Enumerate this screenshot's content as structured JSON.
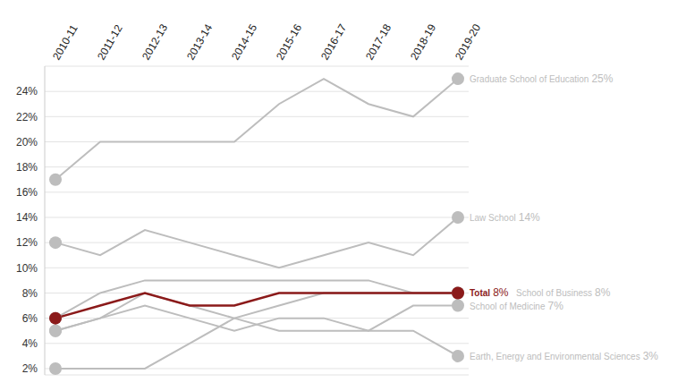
{
  "chart_data": {
    "type": "line",
    "categories": [
      "2010-11",
      "2011-12",
      "2012-13",
      "2013-14",
      "2014-15",
      "2015-16",
      "2016-17",
      "2017-18",
      "2018-19",
      "2019-20"
    ],
    "ylim": [
      1.5,
      26
    ],
    "yticks": [
      {
        "value": 2,
        "label": "2%"
      },
      {
        "value": 4,
        "label": "4%"
      },
      {
        "value": 6,
        "label": "6%"
      },
      {
        "value": 8,
        "label": "8%"
      },
      {
        "value": 10,
        "label": "10%"
      },
      {
        "value": 12,
        "label": "12%"
      },
      {
        "value": 14,
        "label": "14%"
      },
      {
        "value": 16,
        "label": "16%"
      },
      {
        "value": 18,
        "label": "18%"
      },
      {
        "value": 20,
        "label": "20%"
      },
      {
        "value": 22,
        "label": "22%"
      },
      {
        "value": 24,
        "label": "24%"
      }
    ],
    "grid": true,
    "marker": "circle",
    "series": [
      {
        "name": "Graduate School of Education",
        "color": "#bdbdbd",
        "values": [
          17,
          20,
          20,
          20,
          20,
          23,
          25,
          23,
          22,
          25
        ],
        "value_labels": [
          null,
          null,
          null,
          null,
          null,
          null,
          null,
          null,
          null,
          "25%"
        ]
      },
      {
        "name": "Law School",
        "color": "#bdbdbd",
        "values": [
          12,
          11,
          13,
          12,
          11,
          10,
          11,
          12,
          11,
          14
        ],
        "value_labels": [
          null,
          null,
          null,
          null,
          null,
          null,
          null,
          null,
          null,
          "14%"
        ]
      },
      {
        "color": "#bdbdbd",
        "values": [
          2,
          2,
          2,
          4,
          6,
          7,
          8,
          8,
          8,
          8
        ]
      },
      {
        "name": "School of Medicine",
        "color": "#bdbdbd",
        "values": [
          5,
          6,
          7,
          6,
          5,
          6,
          6,
          5,
          7,
          7
        ],
        "value_labels": [
          null,
          null,
          null,
          null,
          null,
          null,
          null,
          null,
          null,
          "7%"
        ]
      },
      {
        "name": "Earth, Energy and Environmental Sciences",
        "color": "#bdbdbd",
        "values": [
          5,
          6,
          8,
          7,
          6,
          5,
          5,
          5,
          5,
          3
        ],
        "value_labels": [
          null,
          null,
          null,
          null,
          null,
          null,
          null,
          null,
          null,
          "3%"
        ]
      },
      {
        "name": "School of Business",
        "color": "#bdbdbd",
        "values": [
          6,
          8,
          9,
          9,
          9,
          9,
          9,
          9,
          8,
          8
        ],
        "value_labels": [
          null,
          null,
          null,
          null,
          null,
          null,
          null,
          null,
          null,
          "8%"
        ]
      },
      {
        "name": "Total",
        "color": "#8b1a1a",
        "values": [
          6,
          7,
          8,
          7,
          7,
          8,
          8,
          8,
          8,
          8
        ],
        "value_labels": [
          null,
          null,
          null,
          null,
          null,
          null,
          null,
          null,
          null,
          "8%"
        ]
      }
    ]
  }
}
